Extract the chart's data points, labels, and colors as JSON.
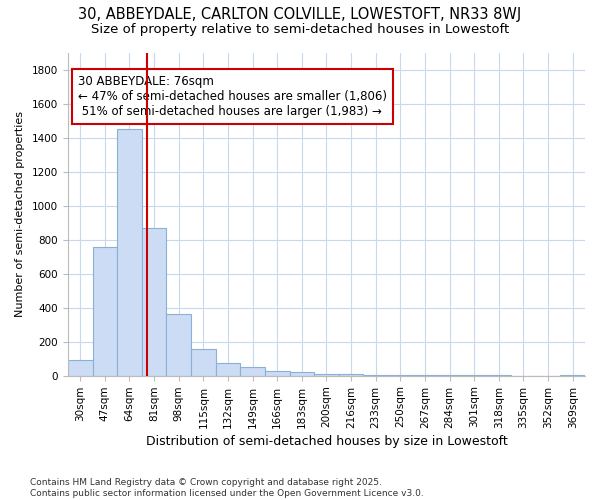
{
  "title1": "30, ABBEYDALE, CARLTON COLVILLE, LOWESTOFT, NR33 8WJ",
  "title2": "Size of property relative to semi-detached houses in Lowestoft",
  "xlabel": "Distribution of semi-detached houses by size in Lowestoft",
  "ylabel": "Number of semi-detached properties",
  "categories": [
    "30sqm",
    "47sqm",
    "64sqm",
    "81sqm",
    "98sqm",
    "115sqm",
    "132sqm",
    "149sqm",
    "166sqm",
    "183sqm",
    "200sqm",
    "216sqm",
    "233sqm",
    "250sqm",
    "267sqm",
    "284sqm",
    "301sqm",
    "318sqm",
    "335sqm",
    "352sqm",
    "369sqm"
  ],
  "values": [
    90,
    755,
    1450,
    870,
    360,
    155,
    75,
    50,
    30,
    20,
    12,
    8,
    5,
    4,
    3,
    2,
    2,
    2,
    1,
    1,
    5
  ],
  "bar_color": "#ccdcf4",
  "bar_edge_color": "#8ab0d8",
  "highlight_line_color": "#cc0000",
  "annotation_text": "30 ABBEYDALE: 76sqm\n← 47% of semi-detached houses are smaller (1,806)\n 51% of semi-detached houses are larger (1,983) →",
  "annotation_box_color": "#ffffff",
  "annotation_box_edge": "#cc0000",
  "background_color": "#ffffff",
  "plot_bg_color": "#ffffff",
  "grid_color": "#c8d8ee",
  "footnote": "Contains HM Land Registry data © Crown copyright and database right 2025.\nContains public sector information licensed under the Open Government Licence v3.0.",
  "ylim": [
    0,
    1900
  ],
  "yticks": [
    0,
    200,
    400,
    600,
    800,
    1000,
    1200,
    1400,
    1600,
    1800
  ],
  "title1_fontsize": 10.5,
  "title2_fontsize": 9.5,
  "xlabel_fontsize": 9,
  "ylabel_fontsize": 8,
  "tick_fontsize": 7.5,
  "annotation_fontsize": 8.5,
  "footnote_fontsize": 6.5
}
